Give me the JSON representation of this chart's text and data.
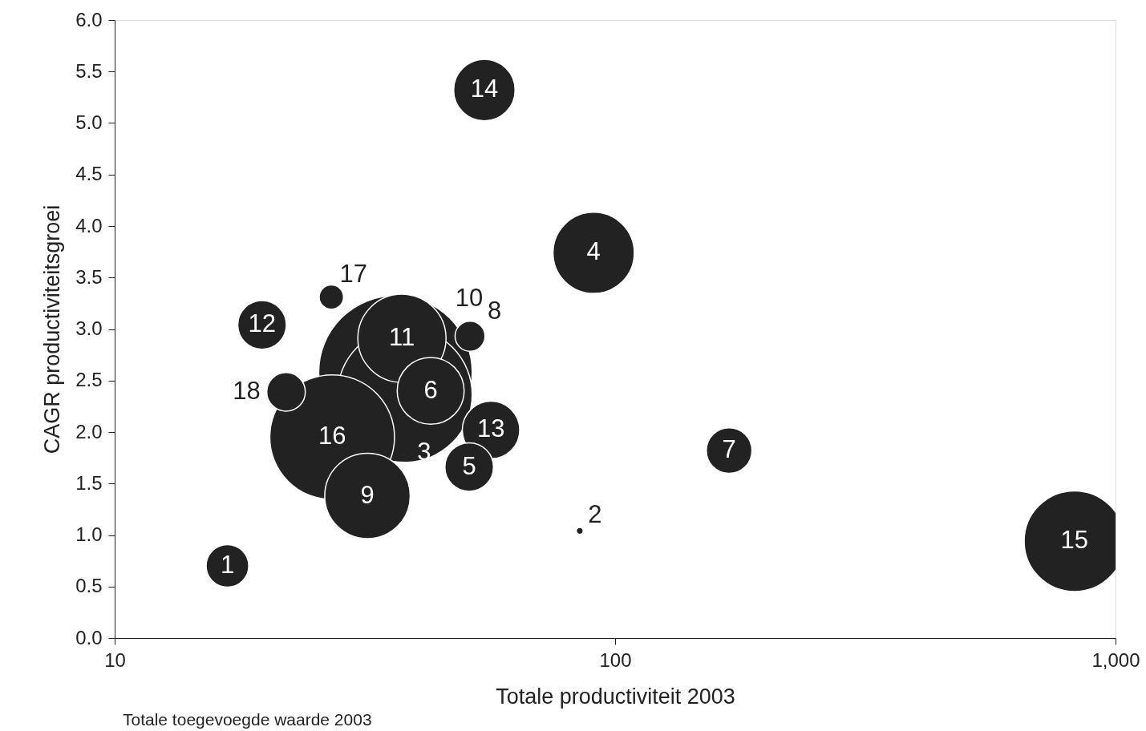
{
  "chart_data": {
    "type": "bubble",
    "xlabel": "Totale productiviteit 2003",
    "ylabel": "CAGR productiviteitsgroei",
    "log": "x",
    "grid": false,
    "xlim": [
      10,
      1000
    ],
    "xticks": [
      10,
      100,
      {
        "value": 1000,
        "label": "1,000"
      }
    ],
    "ylim": [
      0,
      6
    ],
    "yticks": [
      {
        "value": 0,
        "label": "0.0"
      },
      {
        "value": 0.5,
        "label": "0.5"
      },
      {
        "value": 1,
        "label": "1.0"
      },
      {
        "value": 1.5,
        "label": "1.5"
      },
      {
        "value": 2,
        "label": "2.0"
      },
      {
        "value": 2.5,
        "label": "2.5"
      },
      {
        "value": 3,
        "label": "3.0"
      },
      {
        "value": 3.5,
        "label": "3.5"
      },
      {
        "value": 4,
        "label": "4.0"
      },
      {
        "value": 4.5,
        "label": "4.5"
      },
      {
        "value": 5,
        "label": "5.0"
      },
      {
        "value": 5.5,
        "label": "5.5"
      },
      {
        "value": 6,
        "label": "6.0"
      }
    ],
    "series": [
      {
        "name": "1",
        "color": "#222222",
        "x": [
          16.8
        ],
        "values": [
          0.7
        ],
        "sizes": [
          0.077
        ]
      },
      {
        "name": "2",
        "color": "#222222",
        "x": [
          85
        ],
        "values": [
          1.04
        ],
        "sizes": [
          0.002
        ]
      },
      {
        "name": "3",
        "color": "#222222",
        "x": [
          38.0
        ],
        "values": [
          2.36
        ],
        "sizes": [
          0.77
        ]
      },
      {
        "name": "4",
        "color": "#222222",
        "x": [
          90.6
        ],
        "values": [
          3.74
        ],
        "sizes": [
          0.28
        ]
      },
      {
        "name": "5",
        "color": "#222222",
        "x": [
          51.1
        ],
        "values": [
          1.66
        ],
        "sizes": [
          0.1
        ]
      },
      {
        "name": "6",
        "color": "#222222",
        "x": [
          42.8
        ],
        "values": [
          2.4
        ],
        "sizes": [
          0.19
        ]
      },
      {
        "name": "7",
        "color": "#222222",
        "x": [
          169
        ],
        "values": [
          1.82
        ],
        "sizes": [
          0.088
        ]
      },
      {
        "name": "8",
        "color": "#222222",
        "x": [
          51.3
        ],
        "values": [
          2.93
        ],
        "sizes": [
          0.038
        ]
      },
      {
        "name": "9",
        "color": "#222222",
        "x": [
          32.0
        ],
        "values": [
          1.38
        ],
        "sizes": [
          0.31
        ]
      },
      {
        "name": "10",
        "color": "#222222",
        "x": [
          36.4
        ],
        "values": [
          2.58
        ],
        "sizes": [
          1
        ]
      },
      {
        "name": "11",
        "color": "#222222",
        "x": [
          37.5
        ],
        "values": [
          2.91
        ],
        "sizes": [
          0.33
        ]
      },
      {
        "name": "12",
        "color": "#222222",
        "x": [
          19.7
        ],
        "values": [
          3.04
        ],
        "sizes": [
          0.1
        ]
      },
      {
        "name": "13",
        "color": "#222222",
        "x": [
          56.5
        ],
        "values": [
          2.02
        ],
        "sizes": [
          0.14
        ]
      },
      {
        "name": "14",
        "color": "#222222",
        "x": [
          54.8
        ],
        "values": [
          5.32
        ],
        "sizes": [
          0.16
        ]
      },
      {
        "name": "15",
        "color": "#222222",
        "x": [
          828
        ],
        "values": [
          0.94
        ],
        "sizes": [
          0.43
        ]
      },
      {
        "name": "16",
        "color": "#222222",
        "x": [
          27.2
        ],
        "values": [
          1.95
        ],
        "sizes": [
          0.66
        ]
      },
      {
        "name": "17",
        "color": "#222222",
        "x": [
          27.1
        ],
        "values": [
          3.31
        ],
        "sizes": [
          0.025
        ]
      },
      {
        "name": "18",
        "color": "#222222",
        "x": [
          22.0
        ],
        "values": [
          2.39
        ],
        "sizes": [
          0.063
        ]
      }
    ],
    "annotations": [
      "Totale toegevoegde waarde 2003"
    ]
  }
}
